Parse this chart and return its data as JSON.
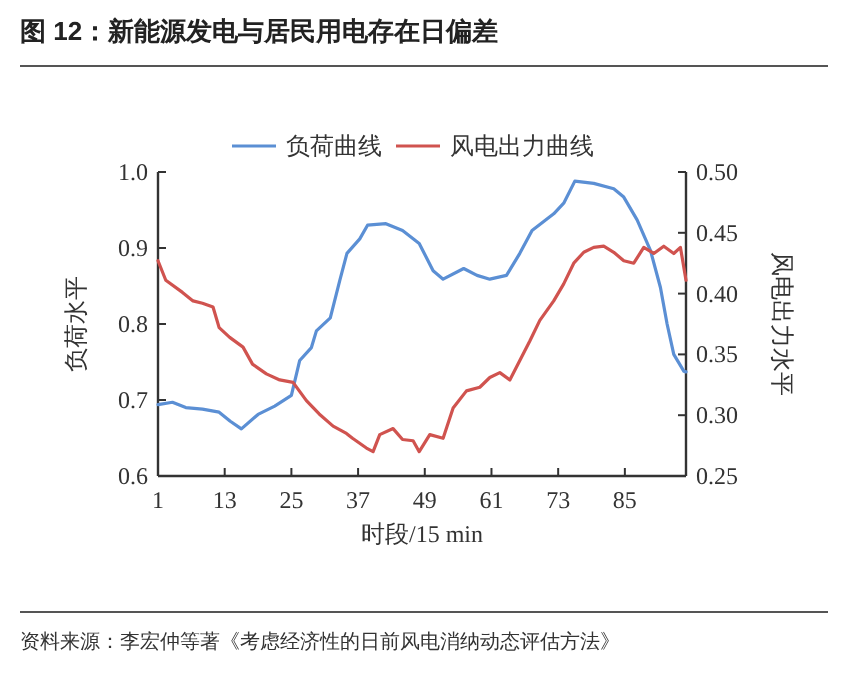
{
  "chart_data": {
    "type": "line",
    "title": "图 12：新能源发电与居民用电存在日偏差",
    "xlabel": "时段/15 min",
    "ylabel": "负荷水平",
    "y2label": "风电出力水平",
    "annotations": [
      "资料来源：李宏仲等著《考虑经济性的日前风电消纳动态评估方法》"
    ],
    "xlim": [
      1,
      96
    ],
    "xticks": [
      1,
      13,
      25,
      37,
      49,
      61,
      73,
      85
    ],
    "ylim": [
      0.6,
      1.0
    ],
    "yticks": [
      0.6,
      0.7,
      0.8,
      0.9,
      {
        "value": 1,
        "label": "1.0"
      }
    ],
    "y2lim": [
      0.25,
      0.5
    ],
    "y2ticks": [
      0.25,
      {
        "value": 0.3,
        "label": "0.30"
      },
      0.35,
      {
        "value": 0.4,
        "label": "0.40"
      },
      0.45,
      {
        "value": 0.5,
        "label": "0.50"
      }
    ],
    "legend": "top",
    "grid": false,
    "series": [
      {
        "name": "负荷曲线",
        "color": "#5b8fd4",
        "x": [
          1,
          3.6,
          6,
          9,
          12,
          14,
          16,
          19,
          22,
          25,
          26.5,
          28.6,
          29.5,
          32,
          33.7,
          35,
          37.3,
          38.7,
          42,
          45,
          48,
          50.5,
          52.3,
          56,
          58.4,
          60.7,
          63.7,
          66.1,
          68.3,
          72.2,
          74,
          76,
          79.4,
          83,
          84.8,
          87.2,
          89.6,
          91.4,
          92.6,
          93.8,
          95.6,
          96
        ],
        "values": [
          0.694,
          0.697,
          0.69,
          0.688,
          0.684,
          0.672,
          0.662,
          0.681,
          0.692,
          0.706,
          0.752,
          0.769,
          0.791,
          0.808,
          0.857,
          0.893,
          0.912,
          0.93,
          0.932,
          0.923,
          0.906,
          0.87,
          0.859,
          0.873,
          0.864,
          0.859,
          0.864,
          0.893,
          0.923,
          0.945,
          0.959,
          0.988,
          0.985,
          0.978,
          0.967,
          0.937,
          0.897,
          0.848,
          0.8,
          0.76,
          0.738,
          0.737
        ]
      },
      {
        "name": "风电出力曲线",
        "color": "#d0534f",
        "axis": "y2",
        "x": [
          1,
          2.4,
          5.4,
          7.3,
          9,
          10.9,
          12,
          13.9,
          16.3,
          18,
          20.5,
          22.9,
          25.3,
          27.7,
          30,
          32.5,
          34.9,
          36,
          38.5,
          39.7,
          40.9,
          43.3,
          45,
          46.9,
          48,
          49.9,
          52.3,
          54.1,
          56.5,
          58.9,
          60.7,
          62.5,
          64.3,
          66.1,
          67.9,
          69.7,
          72.2,
          74,
          75.8,
          77.6,
          79.4,
          81.2,
          83,
          84.8,
          86.6,
          88.4,
          90.2,
          92,
          93.8,
          95,
          96
        ],
        "values": [
          0.427,
          0.411,
          0.401,
          0.394,
          0.392,
          0.389,
          0.372,
          0.364,
          0.356,
          0.342,
          0.334,
          0.329,
          0.327,
          0.312,
          0.301,
          0.291,
          0.285,
          0.281,
          0.273,
          0.27,
          0.284,
          0.289,
          0.28,
          0.279,
          0.27,
          0.284,
          0.281,
          0.306,
          0.32,
          0.323,
          0.331,
          0.335,
          0.329,
          0.345,
          0.361,
          0.378,
          0.394,
          0.408,
          0.425,
          0.434,
          0.438,
          0.439,
          0.434,
          0.427,
          0.425,
          0.438,
          0.433,
          0.439,
          0.433,
          0.438,
          0.411
        ]
      }
    ]
  }
}
